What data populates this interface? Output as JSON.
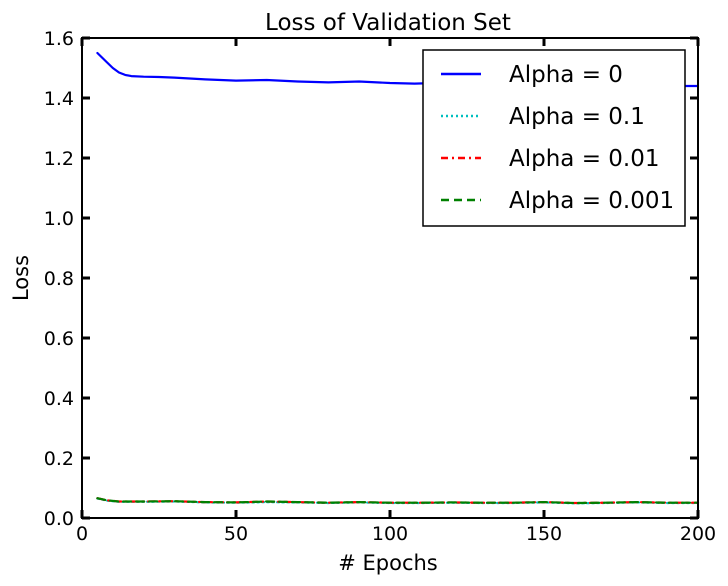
{
  "chart_data": {
    "type": "line",
    "title": "Loss of Validation Set",
    "xlabel": "# Epochs",
    "ylabel": "Loss",
    "xlim": [
      0,
      200
    ],
    "ylim": [
      0.0,
      1.6
    ],
    "xticks": [
      "0",
      "50",
      "100",
      "150",
      "200"
    ],
    "yticks": [
      "0.0",
      "0.2",
      "0.4",
      "0.6",
      "0.8",
      "1.0",
      "1.2",
      "1.4",
      "1.6"
    ],
    "grid": false,
    "legend_position": "top-right",
    "series": [
      {
        "name": "Alpha = 0",
        "color": "#0000ff",
        "style": "solid",
        "x": [
          5,
          8,
          10,
          12,
          14,
          16,
          20,
          25,
          30,
          40,
          50,
          60,
          70,
          80,
          90,
          100,
          108,
          115,
          130,
          150,
          170,
          190,
          200
        ],
        "y": [
          1.55,
          1.52,
          1.5,
          1.485,
          1.477,
          1.473,
          1.471,
          1.47,
          1.468,
          1.462,
          1.458,
          1.46,
          1.455,
          1.452,
          1.455,
          1.45,
          1.448,
          1.45,
          1.445,
          1.445,
          1.442,
          1.44,
          1.44
        ]
      },
      {
        "name": "Alpha = 0.1",
        "color": "#00bfbf",
        "style": "dotted",
        "x": [
          5,
          8,
          12,
          20,
          30,
          40,
          50,
          60,
          70,
          80,
          90,
          100,
          110,
          120,
          130,
          140,
          150,
          160,
          170,
          180,
          190,
          200
        ],
        "y": [
          0.065,
          0.058,
          0.054,
          0.054,
          0.055,
          0.052,
          0.051,
          0.053,
          0.052,
          0.05,
          0.052,
          0.05,
          0.05,
          0.051,
          0.05,
          0.05,
          0.052,
          0.049,
          0.05,
          0.052,
          0.05,
          0.05
        ]
      },
      {
        "name": "Alpha = 0.01",
        "color": "#ff0000",
        "style": "dashdot",
        "x": [
          5,
          8,
          12,
          20,
          30,
          40,
          50,
          60,
          70,
          80,
          90,
          100,
          110,
          120,
          130,
          140,
          150,
          160,
          170,
          180,
          190,
          200
        ],
        "y": [
          0.066,
          0.059,
          0.055,
          0.055,
          0.056,
          0.053,
          0.052,
          0.055,
          0.053,
          0.051,
          0.053,
          0.051,
          0.051,
          0.052,
          0.051,
          0.051,
          0.053,
          0.05,
          0.051,
          0.053,
          0.051,
          0.051
        ]
      },
      {
        "name": "Alpha = 0.001",
        "color": "#008000",
        "style": "dashed",
        "x": [
          5,
          8,
          12,
          20,
          30,
          40,
          50,
          60,
          70,
          80,
          90,
          100,
          110,
          120,
          130,
          140,
          150,
          160,
          170,
          180,
          190,
          200
        ],
        "y": [
          0.066,
          0.059,
          0.055,
          0.055,
          0.056,
          0.053,
          0.052,
          0.055,
          0.053,
          0.051,
          0.053,
          0.051,
          0.051,
          0.052,
          0.051,
          0.051,
          0.053,
          0.05,
          0.051,
          0.053,
          0.051,
          0.051
        ]
      }
    ]
  }
}
